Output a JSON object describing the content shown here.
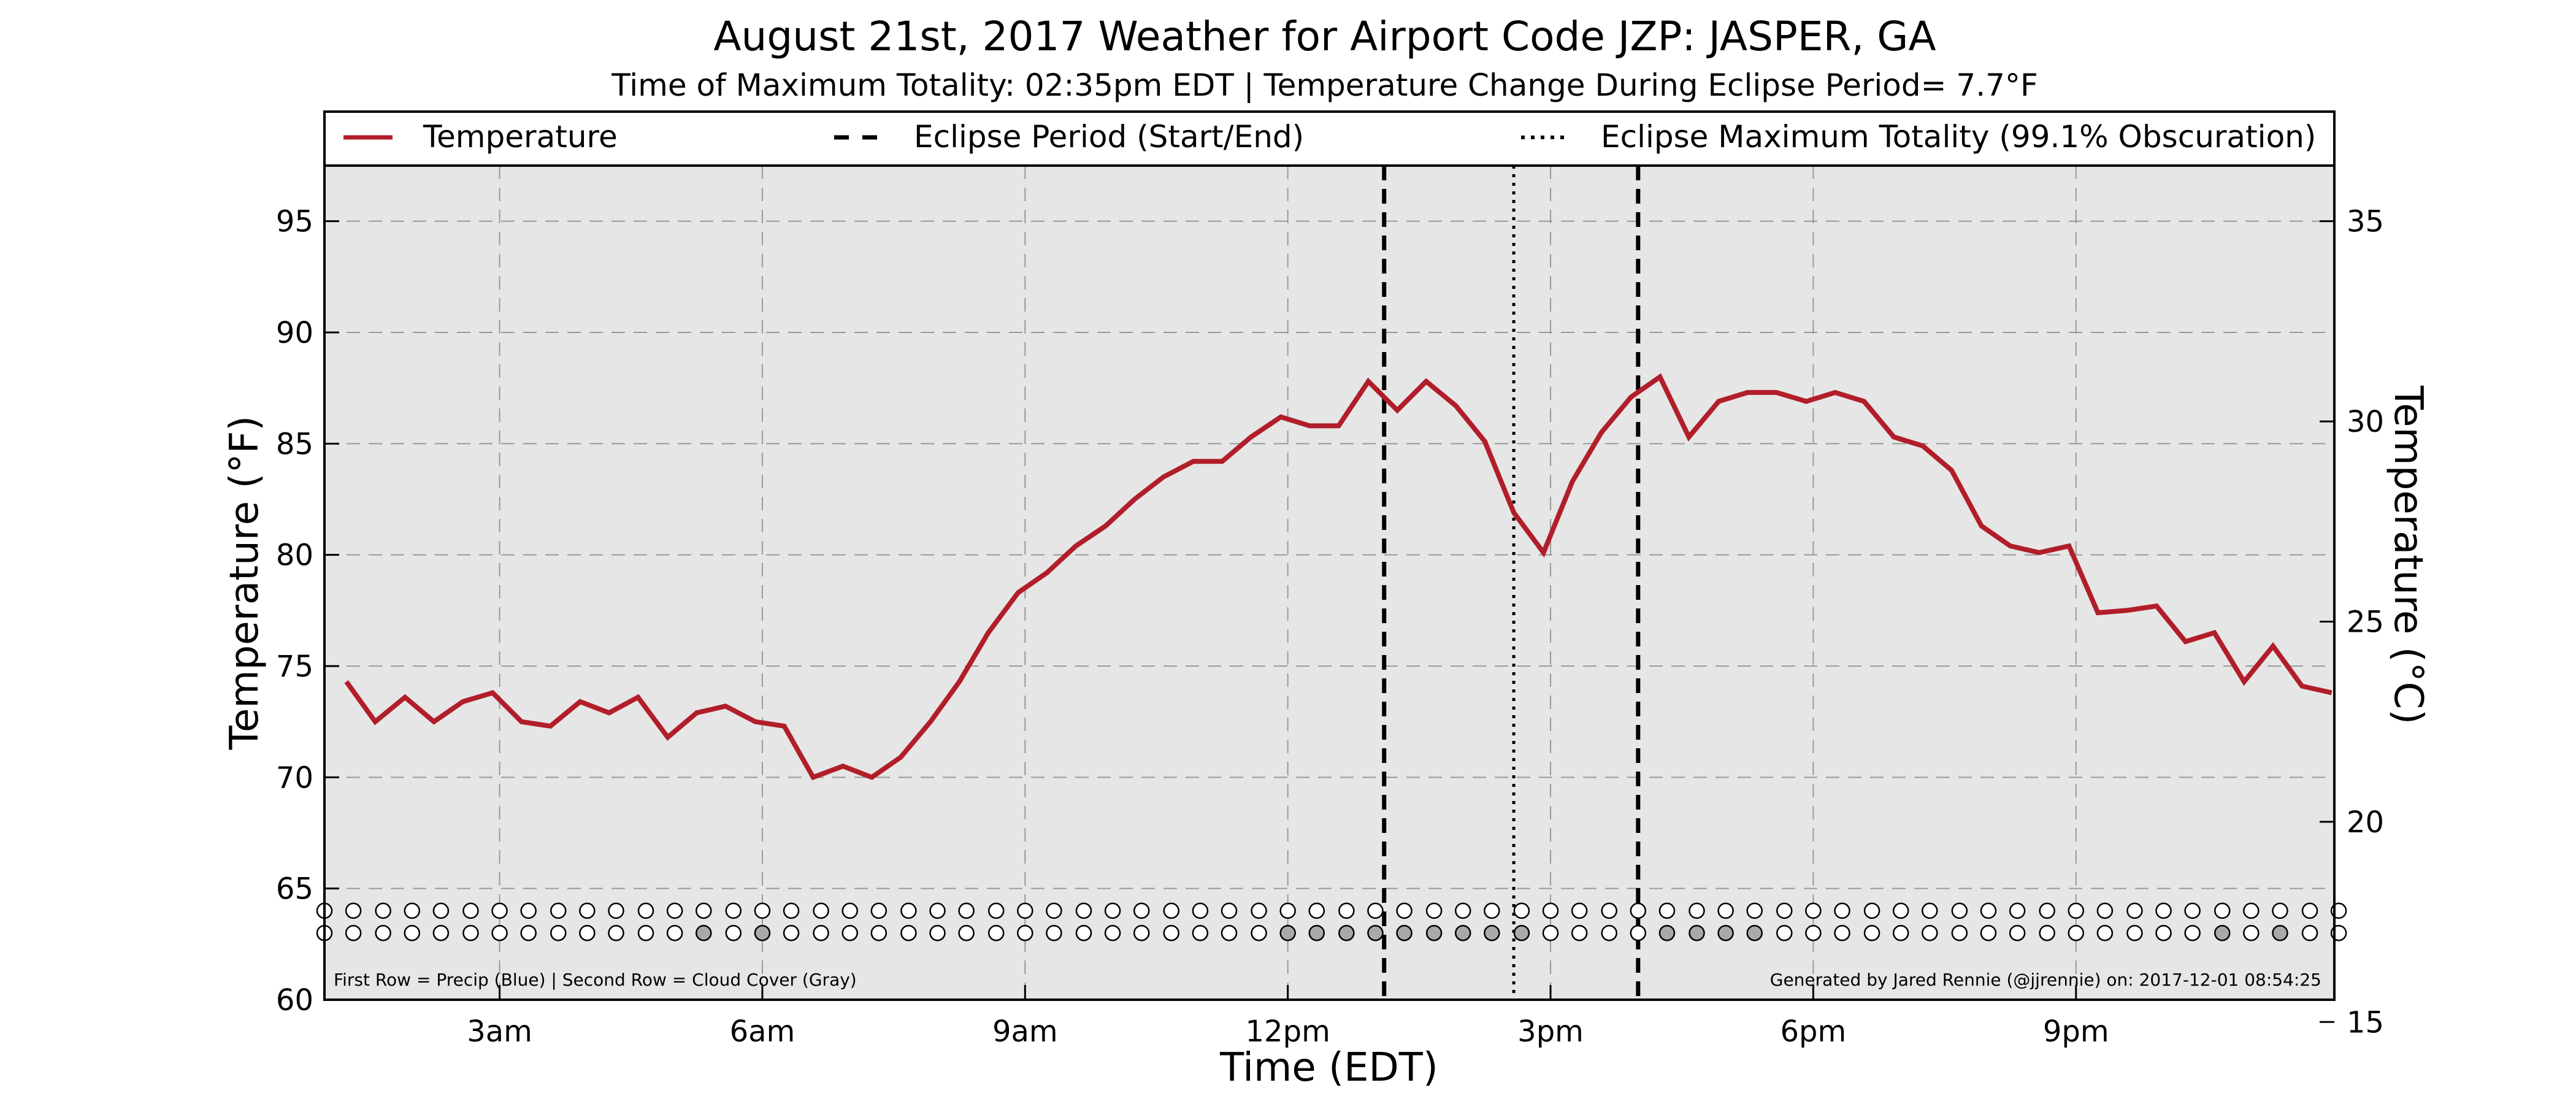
{
  "chart_data": {
    "type": "line",
    "title": "August 21st, 2017 Weather for Airport Code JZP: JASPER, GA",
    "subtitle": "Time of Maximum Totality: 02:35pm EDT | Temperature Change During Eclipse Period= 7.7°F",
    "xlabel": "Time (EDT)",
    "ylabel_left": "Temperature (°F)",
    "ylabel_right": "Temperature (°C)",
    "x_ticks": [
      {
        "label": "3am",
        "hour": 3
      },
      {
        "label": "6am",
        "hour": 6
      },
      {
        "label": "9am",
        "hour": 9
      },
      {
        "label": "12pm",
        "hour": 12
      },
      {
        "label": "3pm",
        "hour": 15
      },
      {
        "label": "6pm",
        "hour": 18
      },
      {
        "label": "9pm",
        "hour": 21
      }
    ],
    "xlim_hours": [
      1.0,
      23.95
    ],
    "ylim_f": [
      60,
      97.5
    ],
    "y_ticks_f": [
      60,
      65,
      70,
      75,
      80,
      85,
      90,
      95
    ],
    "y_ticks_c": [
      15,
      20,
      25,
      30,
      35
    ],
    "grid": true,
    "legend_position": "top",
    "legend": [
      {
        "label": "Temperature",
        "style": "solid",
        "color": "#b11e2a"
      },
      {
        "label": "Eclipse Period (Start/End)",
        "style": "dashed",
        "color": "#000000"
      },
      {
        "label": "Eclipse Maximum Totality (99.1% Obscuration)",
        "style": "dotted",
        "color": "#000000"
      }
    ],
    "eclipse": {
      "start_hour": 13.1,
      "max_hour": 14.58,
      "end_hour": 16.0
    },
    "series": [
      {
        "name": "Temperature",
        "color": "#b11e2a",
        "x": [
          1.25,
          1.58,
          1.92,
          2.25,
          2.58,
          2.92,
          3.25,
          3.58,
          3.92,
          4.25,
          4.58,
          4.92,
          5.25,
          5.58,
          5.92,
          6.25,
          6.58,
          6.92,
          7.25,
          7.58,
          7.92,
          8.25,
          8.58,
          8.92,
          9.25,
          9.58,
          9.92,
          10.25,
          10.58,
          10.92,
          11.25,
          11.58,
          11.92,
          12.25,
          12.58,
          12.92,
          13.25,
          13.58,
          13.92,
          14.25,
          14.58,
          14.92,
          15.25,
          15.58,
          15.92,
          16.25,
          16.58,
          16.92,
          17.25,
          17.58,
          17.92,
          18.25,
          18.58,
          18.92,
          19.25,
          19.58,
          19.92,
          20.25,
          20.58,
          20.92,
          21.25,
          21.58,
          21.92,
          22.25,
          22.58,
          22.92,
          23.25,
          23.58,
          23.92
        ],
        "values": [
          74.3,
          72.5,
          73.6,
          72.5,
          73.4,
          73.8,
          72.5,
          72.3,
          73.4,
          72.9,
          73.6,
          71.8,
          72.9,
          73.2,
          72.5,
          72.3,
          70.0,
          70.5,
          70.0,
          70.9,
          72.5,
          74.3,
          76.5,
          78.3,
          79.2,
          80.4,
          81.3,
          82.5,
          83.5,
          84.2,
          84.2,
          85.3,
          86.2,
          85.8,
          85.8,
          87.8,
          86.5,
          87.8,
          86.7,
          85.1,
          81.9,
          80.1,
          83.3,
          85.5,
          87.1,
          88.0,
          85.3,
          86.9,
          87.3,
          87.3,
          86.9,
          87.3,
          86.9,
          85.3,
          84.9,
          83.8,
          81.3,
          80.4,
          80.1,
          80.4,
          77.4,
          77.5,
          77.7,
          76.1,
          76.5,
          74.3,
          75.9,
          74.1,
          73.8
        ]
      }
    ],
    "indicator_rows": {
      "hours": [
        1.0,
        1.33,
        1.67,
        2.0,
        2.33,
        2.67,
        3.0,
        3.33,
        3.67,
        4.0,
        4.33,
        4.67,
        5.0,
        5.33,
        5.67,
        6.0,
        6.33,
        6.67,
        7.0,
        7.33,
        7.67,
        8.0,
        8.33,
        8.67,
        9.0,
        9.33,
        9.67,
        10.0,
        10.33,
        10.67,
        11.0,
        11.33,
        11.67,
        12.0,
        12.33,
        12.67,
        13.0,
        13.33,
        13.67,
        14.0,
        14.33,
        14.67,
        15.0,
        15.33,
        15.67,
        16.0,
        16.33,
        16.67,
        17.0,
        17.33,
        17.67,
        18.0,
        18.33,
        18.67,
        19.0,
        19.33,
        19.67,
        20.0,
        20.33,
        20.67,
        21.0,
        21.33,
        21.67,
        22.0,
        22.33,
        22.67,
        23.0,
        23.33,
        23.67,
        24.0
      ],
      "precip_y_f": 64.0,
      "cloud_y_f": 63.0,
      "precip": [
        0,
        0,
        0,
        0,
        0,
        0,
        0,
        0,
        0,
        0,
        0,
        0,
        0,
        0,
        0,
        0,
        0,
        0,
        0,
        0,
        0,
        0,
        0,
        0,
        0,
        0,
        0,
        0,
        0,
        0,
        0,
        0,
        0,
        0,
        0,
        0,
        0,
        0,
        0,
        0,
        0,
        0,
        0,
        0,
        0,
        0,
        0,
        0,
        0,
        0,
        0,
        0,
        0,
        0,
        0,
        0,
        0,
        0,
        0,
        0,
        0,
        0,
        0,
        0,
        0,
        0,
        0,
        0,
        0,
        0
      ],
      "cloud": [
        0,
        0,
        0,
        0,
        0,
        0,
        0,
        0,
        0,
        0,
        0,
        0,
        0,
        1,
        0,
        1,
        0,
        0,
        0,
        0,
        0,
        0,
        0,
        0,
        0,
        0,
        0,
        0,
        0,
        0,
        0,
        0,
        0,
        1,
        1,
        1,
        1,
        1,
        1,
        1,
        1,
        1,
        0,
        0,
        0,
        0,
        1,
        1,
        1,
        1,
        0,
        0,
        0,
        0,
        0,
        0,
        0,
        0,
        0,
        0,
        0,
        0,
        0,
        0,
        0,
        1,
        0,
        1,
        0,
        0
      ],
      "empty_fill": "#ffffff",
      "cloud_fill": "#a9a9a9",
      "precip_fill": "#3a6fd8"
    },
    "colors": {
      "plot_bg": "#e6e6e6",
      "grid": "#999999",
      "line": "#b11e2a"
    }
  },
  "footnotes": {
    "left": "First Row = Precip (Blue) | Second Row = Cloud Cover (Gray)",
    "right": "Generated by Jared Rennie (@jjrennie) on: 2017-12-01 08:54:25"
  }
}
